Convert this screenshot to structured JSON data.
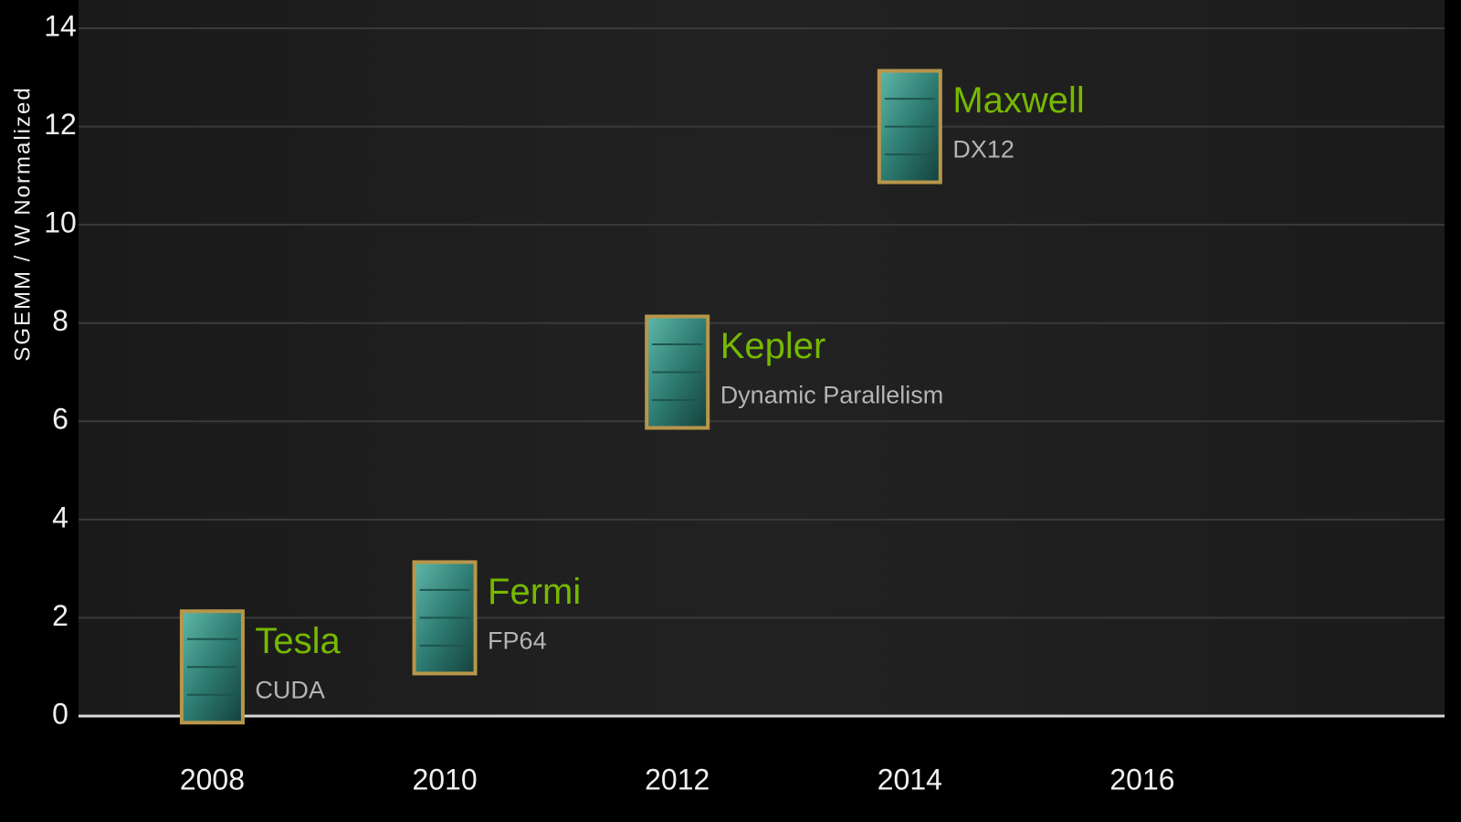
{
  "chart_data": {
    "type": "scatter",
    "y_label": "SGEMM / W Normalized",
    "x": [
      2008,
      2010,
      2012,
      2014
    ],
    "values": [
      1,
      2,
      7,
      12
    ],
    "point_labels": [
      "Tesla",
      "Fermi",
      "Kepler",
      "Maxwell"
    ],
    "point_sublabels": [
      "CUDA",
      "FP64",
      "Dynamic Parallelism",
      "DX12"
    ],
    "label_color": "#76b900",
    "sublabel_color": "#b4b4b4",
    "xlim": [
      2006.85,
      2018.6
    ],
    "xticks": [
      2008,
      2010,
      2012,
      2014,
      2016
    ],
    "ylim": [
      0,
      14
    ],
    "yticks": [
      0,
      2,
      4,
      6,
      8,
      10,
      12,
      14
    ],
    "grid": true
  }
}
